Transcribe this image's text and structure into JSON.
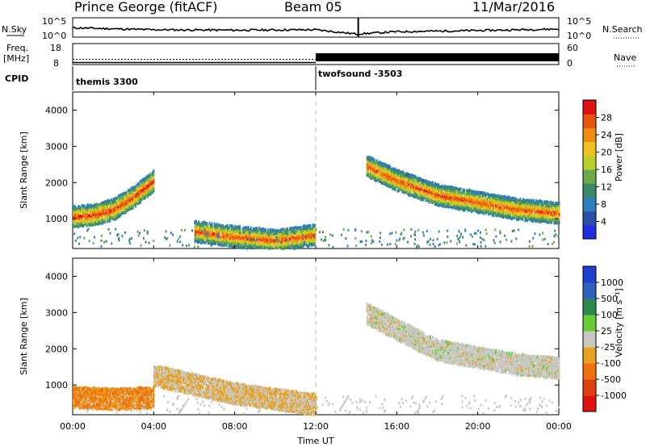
{
  "header": {
    "station": "Prince George (fitACF)",
    "beam": "Beam 05",
    "date": "11/Mar/2016"
  },
  "top_panels": {
    "nsky_label": "N.Sky",
    "nsky_ticks": [
      "10^5",
      "10^0"
    ],
    "nsearch_label": "N.Search",
    "freq_label": "Freq.",
    "freq_unit": "[MHz]",
    "freq_ticks": [
      "18",
      "8"
    ],
    "nave_ticks": [
      "60",
      "0"
    ],
    "nave_label": "Nave",
    "cpid_label": "CPID",
    "cpid_1": "themis 3300",
    "cpid_2": "twofsound -3503"
  },
  "x_axis": {
    "label": "Time UT",
    "ticks": [
      "00:00",
      "04:00",
      "08:00",
      "12:00",
      "16:00",
      "20:00",
      "00:00"
    ]
  },
  "colorbars": {
    "power": {
      "label": "Power [dB]",
      "ticks": [
        "28",
        "24",
        "20",
        "16",
        "12",
        "8",
        "4"
      ]
    },
    "velocity": {
      "label": "Velocity [m s⁻¹]",
      "ticks": [
        "1000",
        "500",
        "100",
        "25",
        "-25",
        "-100",
        "-500",
        "-1000"
      ]
    }
  },
  "colors": {
    "power_scale": [
      "#1f2fe0",
      "#2b4fa8",
      "#2d7fbf",
      "#3a8a6a",
      "#6aa84a",
      "#b8cf2e",
      "#f0c020",
      "#f08a10",
      "#e85510",
      "#e01010"
    ],
    "velocity_scale": [
      "#2040d0",
      "#3060c0",
      "#2d8a4a",
      "#66cc33",
      "#c8c8c0",
      "#e8a020",
      "#f07010",
      "#e04010",
      "#e01010"
    ]
  },
  "chart_data": [
    {
      "type": "line",
      "title": "N.Sky",
      "x": [
        "00:00",
        "04:00",
        "08:00",
        "12:00",
        "14:00",
        "16:00",
        "20:00",
        "24:00"
      ],
      "y": [
        2.4,
        1.9,
        1.8,
        1.9,
        0.8,
        1.4,
        1.7,
        2.1
      ],
      "ylim": [
        0,
        5
      ]
    },
    {
      "type": "line",
      "title": "Freq.",
      "x": [
        "00:00",
        "12:00",
        "24:00"
      ],
      "y": [
        10.5,
        10.5,
        10.5
      ],
      "ylim": [
        8,
        18
      ]
    },
    {
      "type": "heatmap",
      "ylabel": "Slant Range [km]",
      "xlabel": "Time UT",
      "xlim": [
        "00:00",
        "24:00"
      ],
      "ylim": [
        180,
        4500
      ],
      "colorbar": "Power [dB]",
      "clim": [
        0,
        30
      ],
      "bands": [
        {
          "t": [
            0,
            1,
            2,
            3,
            4
          ],
          "range": [
            1100,
            1150,
            1300,
            1650,
            2100
          ],
          "value": 28
        },
        {
          "t": [
            6,
            8,
            10,
            12
          ],
          "range": [
            700,
            550,
            450,
            600
          ],
          "value": 26
        },
        {
          "t": [
            14.5,
            16,
            18,
            20,
            22,
            24
          ],
          "range": [
            2500,
            2100,
            1700,
            1500,
            1300,
            1200
          ],
          "value": 26
        }
      ]
    },
    {
      "type": "heatmap",
      "ylabel": "Slant Range [km]",
      "xlabel": "Time UT",
      "xlim": [
        "00:00",
        "24:00"
      ],
      "ylim": [
        180,
        4500
      ],
      "colorbar": "Velocity [m s⁻¹]",
      "clim": [
        -1000,
        1000
      ],
      "bands": [
        {
          "t": [
            0,
            2,
            4
          ],
          "range": [
            700,
            650,
            700
          ],
          "value": -100
        },
        {
          "t": [
            4,
            8,
            12
          ],
          "range": [
            1300,
            800,
            500
          ],
          "value": -25
        },
        {
          "t": [
            14.5,
            18,
            22,
            24
          ],
          "range": [
            3000,
            2000,
            1600,
            1500
          ],
          "value": 0
        }
      ]
    }
  ]
}
